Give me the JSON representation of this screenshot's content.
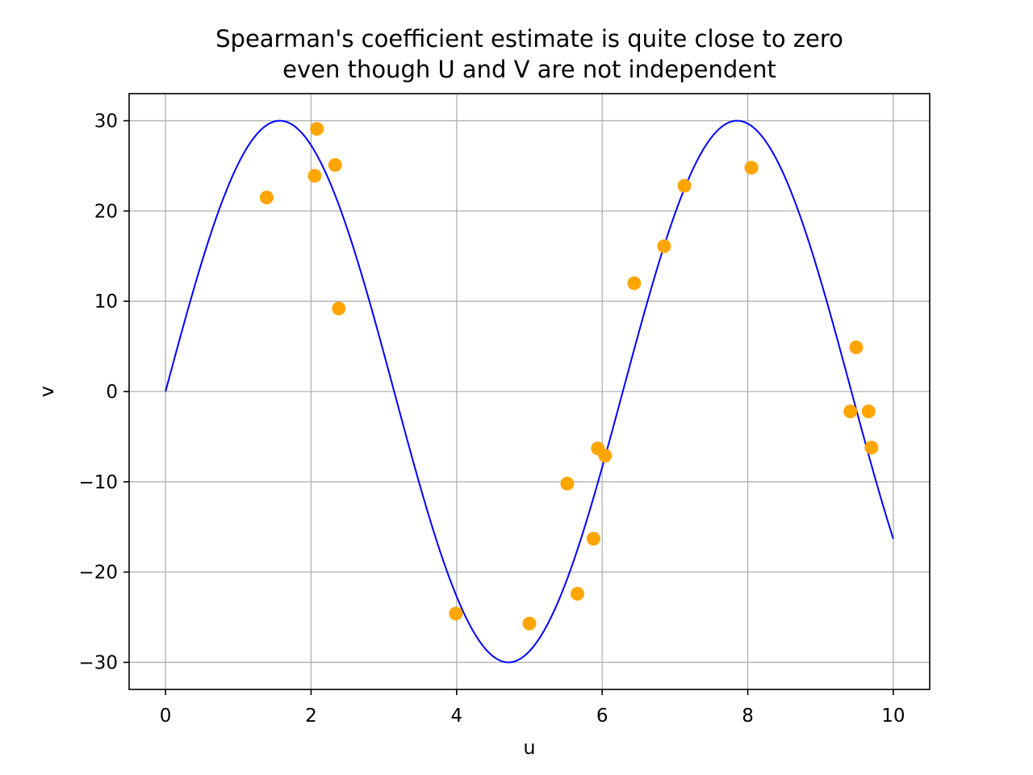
{
  "chart_data": {
    "type": "scatter",
    "title": "Spearman's coefficient estimate is quite close to zero\neven though U and V are not independent",
    "xlabel": "u",
    "ylabel": "v",
    "xlim": [
      -0.5,
      10.5
    ],
    "ylim": [
      -33,
      33
    ],
    "xticks": [
      0,
      2,
      4,
      6,
      8,
      10
    ],
    "yticks": [
      -30,
      -20,
      -10,
      0,
      10,
      20,
      30
    ],
    "xtick_labels": [
      "0",
      "2",
      "4",
      "6",
      "8",
      "10"
    ],
    "ytick_labels": [
      "−30",
      "−20",
      "−10",
      "0",
      "10",
      "20",
      "30"
    ],
    "grid": true,
    "legend": "none",
    "curve": {
      "function": "30*sin(u)",
      "amplitude": 30,
      "x_range": [
        0,
        10
      ],
      "color": "#0000ff"
    },
    "points": {
      "color": "#ffa500",
      "x": [
        1.39,
        2.05,
        2.08,
        2.33,
        2.38,
        3.99,
        5.0,
        5.52,
        5.66,
        5.88,
        5.94,
        6.04,
        6.44,
        6.85,
        7.13,
        8.05,
        9.41,
        9.49,
        9.66,
        9.7
      ],
      "y": [
        21.5,
        23.9,
        29.1,
        25.1,
        9.2,
        -24.6,
        -25.7,
        -10.2,
        -22.4,
        -16.3,
        -6.3,
        -7.1,
        12.0,
        16.1,
        22.8,
        24.8,
        -2.2,
        4.9,
        -2.2,
        -6.2
      ]
    }
  }
}
